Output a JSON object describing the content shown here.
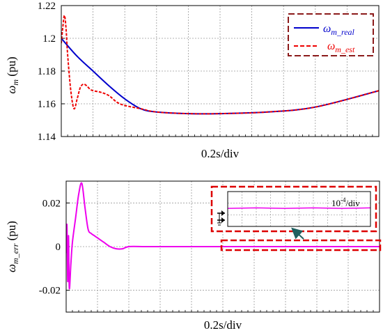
{
  "chart_data": [
    {
      "type": "line",
      "ylabel": {
        "main": "ω",
        "sub": "m",
        "unit": " (pu)"
      },
      "xlabel": "0.2s/div",
      "ylim": [
        1.14,
        1.22
      ],
      "yticks": [
        "1.14",
        "1.16",
        "1.18",
        "1.2",
        "1.22"
      ],
      "x_divisions": 10,
      "grid": true,
      "legend": "top-right",
      "series": [
        {
          "name": "ω_m_real",
          "label": {
            "main": "ω",
            "sub": "m_real"
          },
          "color": "#0000cc",
          "style": "solid",
          "x": [
            0,
            0.1,
            0.2,
            0.3,
            0.4,
            0.5,
            0.6,
            0.8,
            1.0,
            1.3,
            1.6,
            2.0
          ],
          "y": [
            1.2,
            1.189,
            1.18,
            1.171,
            1.163,
            1.157,
            1.155,
            1.154,
            1.154,
            1.155,
            1.158,
            1.168
          ]
        },
        {
          "name": "ω_m_est",
          "label": {
            "main": "ω",
            "sub": "m_est"
          },
          "color": "#ee0000",
          "style": "dashed",
          "x": [
            0,
            0.01,
            0.02,
            0.03,
            0.04,
            0.06,
            0.08,
            0.1,
            0.12,
            0.14,
            0.16,
            0.18,
            0.2,
            0.25,
            0.3,
            0.35,
            0.4,
            0.5,
            0.6,
            0.8,
            1.0,
            1.3,
            1.6,
            2.0
          ],
          "y": [
            1.197,
            1.207,
            1.214,
            1.206,
            1.19,
            1.168,
            1.157,
            1.163,
            1.17,
            1.172,
            1.171,
            1.169,
            1.168,
            1.167,
            1.165,
            1.161,
            1.159,
            1.157,
            1.155,
            1.154,
            1.154,
            1.155,
            1.158,
            1.168
          ]
        }
      ]
    },
    {
      "type": "line",
      "ylabel": {
        "main": "ω",
        "sub": "m_err",
        "unit": " (pu)"
      },
      "xlabel": "0.2s/div",
      "ylim": [
        -0.03,
        0.03
      ],
      "yticks": [
        "-0.02",
        "0",
        "0.02"
      ],
      "ytick_values": [
        -0.02,
        0,
        0.02
      ],
      "x_divisions": 10,
      "grid": true,
      "series": [
        {
          "name": "ω_m_err",
          "color": "#ee00ee",
          "style": "solid",
          "x": [
            0,
            0.005,
            0.01,
            0.015,
            0.02,
            0.03,
            0.04,
            0.06,
            0.08,
            0.1,
            0.12,
            0.14,
            0.16,
            0.18,
            0.2,
            0.24,
            0.28,
            0.32,
            0.36,
            0.4,
            0.5,
            0.6,
            0.8,
            1.0,
            2.0
          ],
          "y": [
            -0.003,
            0.01,
            -0.016,
            0.005,
            -0.019,
            -0.008,
            0.002,
            0.013,
            0.024,
            0.029,
            0.018,
            0.008,
            0.006,
            0.005,
            0.004,
            0.002,
            0.0,
            -0.001,
            -0.001,
            0.0,
            0.0,
            0.0,
            0.0,
            0.0,
            0.0
          ]
        }
      ],
      "inset": {
        "label": "10⁻⁴/div",
        "label_base": "10",
        "label_exp": "-4",
        "label_unit": "/div",
        "zoom_x": [
          1.0,
          2.0
        ],
        "zoom_ylim": [
          -0.0003,
          0.0003
        ],
        "series_y": [
          1e-05,
          2e-05,
          1e-05,
          2e-05,
          1e-05,
          2e-05
        ]
      }
    }
  ],
  "colors": {
    "highlight_box": "#dd0000",
    "legend_frame": "#8b1a1a",
    "arrow": "#1f5f5f",
    "grid": "#9a9a9a"
  }
}
